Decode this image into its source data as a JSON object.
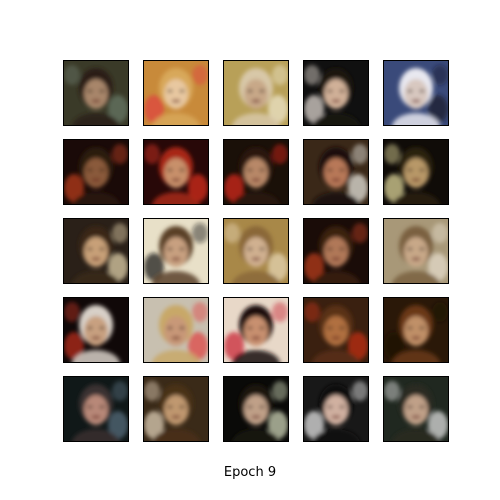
{
  "figure": {
    "caption": "Epoch 9"
  },
  "samples": [
    {
      "bg": "#3a3a28",
      "skin": "#a8866a",
      "hair": "#2a1d14",
      "accent": "#6a7a6a"
    },
    {
      "bg": "#c88a3a",
      "skin": "#e8c8a0",
      "hair": "#d8a85a",
      "accent": "#e04040"
    },
    {
      "bg": "#b8a058",
      "skin": "#c8a888",
      "hair": "#d8c8a8",
      "accent": "#f0e8d0"
    },
    {
      "bg": "#101010",
      "skin": "#d0b098",
      "hair": "#1a1410",
      "accent": "#e8e0d8"
    },
    {
      "bg": "#3a4a7a",
      "skin": "#d8c8c0",
      "hair": "#e8e8f0",
      "accent": "#1a1a2a"
    },
    {
      "bg": "#1a0a08",
      "skin": "#8a5a3a",
      "hair": "#2a1a10",
      "accent": "#c04020"
    },
    {
      "bg": "#280808",
      "skin": "#c8906a",
      "hair": "#a82818",
      "accent": "#e03020"
    },
    {
      "bg": "#1a1008",
      "skin": "#b88868",
      "hair": "#2a1810",
      "accent": "#e02818"
    },
    {
      "bg": "#3a2818",
      "skin": "#b87858",
      "hair": "#1a1008",
      "accent": "#f0f0e8"
    },
    {
      "bg": "#100c08",
      "skin": "#b89868",
      "hair": "#2a2010",
      "accent": "#e8e0a0"
    },
    {
      "bg": "#2a2018",
      "skin": "#c8a078",
      "hair": "#3a2818",
      "accent": "#e8d8b0"
    },
    {
      "bg": "#e8e0c8",
      "skin": "#c8a080",
      "hair": "#5a4028",
      "accent": "#101010"
    },
    {
      "bg": "#a88848",
      "skin": "#d0b090",
      "hair": "#8a6838",
      "accent": "#e8d8b8"
    },
    {
      "bg": "#1a0c08",
      "skin": "#b07858",
      "hair": "#3a2010",
      "accent": "#c04020"
    },
    {
      "bg": "#a89878",
      "skin": "#c8a888",
      "hair": "#7a6040",
      "accent": "#e8e0d0"
    },
    {
      "bg": "#100808",
      "skin": "#c8a080",
      "hair": "#d8d0c8",
      "accent": "#c03020"
    },
    {
      "bg": "#c8c0b0",
      "skin": "#c89878",
      "hair": "#c8a868",
      "accent": "#e04040"
    },
    {
      "bg": "#e8d8c8",
      "skin": "#c89070",
      "hair": "#1a1010",
      "accent": "#c82030"
    },
    {
      "bg": "#3a2010",
      "skin": "#b07040",
      "hair": "#5a3018",
      "accent": "#c83010"
    },
    {
      "bg": "#2a1808",
      "skin": "#c09068",
      "hair": "#6a3818",
      "accent": "#1a1008"
    },
    {
      "bg": "#101818",
      "skin": "#b88878",
      "hair": "#3a3030",
      "accent": "#5a7080"
    },
    {
      "bg": "#3a2a18",
      "skin": "#c09870",
      "hair": "#4a3018",
      "accent": "#e8d8c0"
    },
    {
      "bg": "#0a0a08",
      "skin": "#c0a088",
      "hair": "#1a1410",
      "accent": "#d8e0c0"
    },
    {
      "bg": "#181818",
      "skin": "#d0b0a0",
      "hair": "#0a0808",
      "accent": "#f0f0f0"
    },
    {
      "bg": "#202820",
      "skin": "#c0a088",
      "hair": "#2a2a20",
      "accent": "#e8e8e8"
    }
  ]
}
